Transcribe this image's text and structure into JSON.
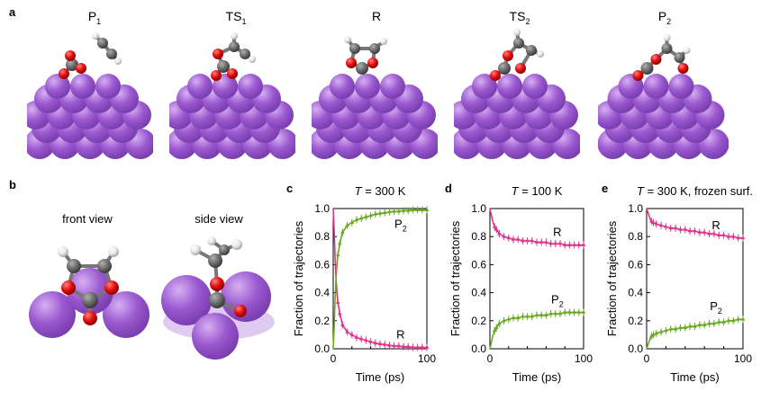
{
  "panels": {
    "a": "a",
    "b": "b",
    "c": "c",
    "d": "d",
    "e": "e"
  },
  "structures": [
    {
      "label_main": "P",
      "label_sub": "1"
    },
    {
      "label_main": "TS",
      "label_sub": "1"
    },
    {
      "label_main": "R",
      "label_sub": ""
    },
    {
      "label_main": "TS",
      "label_sub": "2"
    },
    {
      "label_main": "P",
      "label_sub": "2"
    }
  ],
  "views": {
    "front": "front view",
    "side": "side view"
  },
  "colors": {
    "metal": "#9b59d0",
    "metal_dark": "#7a3fb0",
    "oxygen": "#e01010",
    "carbon": "#6e6e6e",
    "hydrogen": "#e8e8e8",
    "series_R": "#e0348a",
    "series_P2": "#6aaa22"
  },
  "chart_data": [
    {
      "type": "line",
      "title_italic": "T",
      "title_rest": " = 300 K",
      "xlabel": "Time (ps)",
      "ylabel": "Fraction of trajectories",
      "xlim": [
        0,
        100
      ],
      "ylim": [
        0,
        1.0
      ],
      "xticks": [
        "0",
        "100"
      ],
      "yticks": [
        "0.0",
        "0.2",
        "0.4",
        "0.6",
        "0.8",
        "1.0"
      ],
      "x": [
        0,
        1,
        2,
        3,
        4,
        5,
        7,
        10,
        15,
        20,
        25,
        30,
        35,
        40,
        45,
        50,
        55,
        60,
        65,
        70,
        75,
        80,
        85,
        90,
        95,
        100
      ],
      "series": [
        {
          "name": "R",
          "label_main": "R",
          "label_sub": "",
          "values": [
            1.0,
            0.85,
            0.65,
            0.5,
            0.4,
            0.33,
            0.25,
            0.17,
            0.12,
            0.1,
            0.08,
            0.07,
            0.06,
            0.05,
            0.04,
            0.035,
            0.03,
            0.025,
            0.02,
            0.02,
            0.015,
            0.015,
            0.01,
            0.01,
            0.01,
            0.01
          ]
        },
        {
          "name": "P2",
          "label_main": "P",
          "label_sub": "2",
          "values": [
            0.0,
            0.15,
            0.35,
            0.5,
            0.6,
            0.67,
            0.75,
            0.83,
            0.88,
            0.9,
            0.92,
            0.93,
            0.94,
            0.95,
            0.96,
            0.965,
            0.97,
            0.975,
            0.98,
            0.98,
            0.985,
            0.985,
            0.99,
            0.99,
            0.99,
            0.99
          ]
        }
      ]
    },
    {
      "type": "line",
      "title_italic": "T",
      "title_rest": " = 100 K",
      "xlabel": "Time (ps)",
      "ylabel": "Fraction of trajectories",
      "xlim": [
        0,
        100
      ],
      "ylim": [
        0,
        1.0
      ],
      "xticks": [
        "0",
        "100"
      ],
      "yticks": [
        "0.0",
        "0.2",
        "0.4",
        "0.6",
        "0.8",
        "1.0"
      ],
      "x": [
        0,
        1,
        2,
        3,
        4,
        5,
        7,
        10,
        15,
        20,
        25,
        30,
        35,
        40,
        45,
        50,
        55,
        60,
        65,
        70,
        75,
        80,
        85,
        90,
        95,
        100
      ],
      "series": [
        {
          "name": "R",
          "label_main": "R",
          "label_sub": "",
          "values": [
            1.0,
            0.97,
            0.94,
            0.91,
            0.89,
            0.87,
            0.85,
            0.82,
            0.8,
            0.79,
            0.78,
            0.78,
            0.77,
            0.77,
            0.77,
            0.76,
            0.76,
            0.76,
            0.75,
            0.75,
            0.75,
            0.74,
            0.74,
            0.74,
            0.74,
            0.74
          ]
        },
        {
          "name": "P2",
          "label_main": "P",
          "label_sub": "2",
          "values": [
            0.0,
            0.03,
            0.06,
            0.09,
            0.11,
            0.13,
            0.15,
            0.18,
            0.2,
            0.21,
            0.22,
            0.22,
            0.23,
            0.23,
            0.23,
            0.24,
            0.24,
            0.24,
            0.25,
            0.25,
            0.25,
            0.26,
            0.26,
            0.26,
            0.26,
            0.26
          ]
        }
      ]
    },
    {
      "type": "line",
      "title_italic": "T",
      "title_rest": " = 300 K, frozen surf.",
      "xlabel": "Time (ps)",
      "ylabel": "Fraction of trajectories",
      "xlim": [
        0,
        100
      ],
      "ylim": [
        0,
        1.0
      ],
      "xticks": [
        "0",
        "100"
      ],
      "yticks": [
        "0.0",
        "0.2",
        "0.4",
        "0.6",
        "0.8",
        "1.0"
      ],
      "x": [
        0,
        1,
        2,
        3,
        4,
        5,
        7,
        10,
        15,
        20,
        25,
        30,
        35,
        40,
        45,
        50,
        55,
        60,
        65,
        70,
        75,
        80,
        85,
        90,
        95,
        100
      ],
      "series": [
        {
          "name": "R",
          "label_main": "R",
          "label_sub": "",
          "values": [
            1.0,
            0.98,
            0.96,
            0.94,
            0.92,
            0.91,
            0.9,
            0.89,
            0.88,
            0.87,
            0.86,
            0.86,
            0.85,
            0.85,
            0.84,
            0.84,
            0.83,
            0.83,
            0.82,
            0.82,
            0.81,
            0.81,
            0.8,
            0.8,
            0.79,
            0.79
          ]
        },
        {
          "name": "P2",
          "label_main": "P",
          "label_sub": "2",
          "values": [
            0.0,
            0.02,
            0.04,
            0.06,
            0.08,
            0.09,
            0.1,
            0.11,
            0.12,
            0.13,
            0.14,
            0.14,
            0.15,
            0.15,
            0.16,
            0.16,
            0.17,
            0.17,
            0.18,
            0.18,
            0.19,
            0.19,
            0.2,
            0.2,
            0.21,
            0.21
          ]
        }
      ]
    }
  ]
}
